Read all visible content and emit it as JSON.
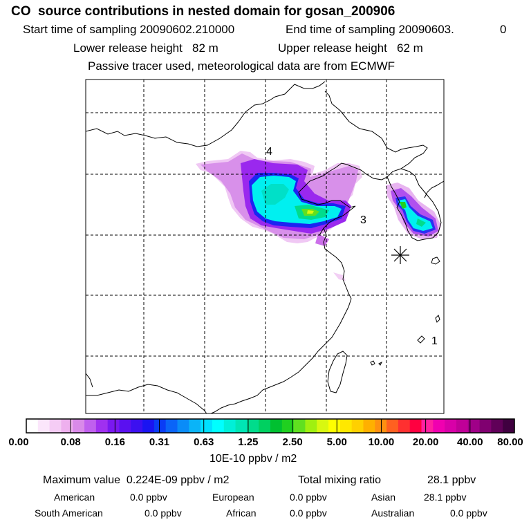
{
  "header": {
    "title": "CO  source contributions in nested domain for gosan_200906",
    "start_label": "Start time of sampling 20090602.210000",
    "end_label": "End time of sampling 20090603.",
    "end_value": "0",
    "lower_label": "Lower release height   82 m",
    "upper_label": "Upper release height   62 m",
    "tracer_line": "Passive tracer used, meteorological data are from ECMWF"
  },
  "map": {
    "region_labels": [
      "4",
      "3",
      "1"
    ],
    "receptor_marker": "asterisk"
  },
  "colorbar": {
    "tick_labels": [
      "0.00",
      "0.08",
      "0.16",
      "0.31",
      "0.63",
      "1.25",
      "2.50",
      "5.00",
      "10.00",
      "20.00",
      "40.00",
      "80.00"
    ],
    "unit": "10E-10 ppbv / m2",
    "colors": [
      "#ffffff",
      "#fbe6fb",
      "#f5ccf5",
      "#eeb0ee",
      "#d98ae9",
      "#c060ee",
      "#a030f0",
      "#7a18f0",
      "#5a10f0",
      "#3c10f0",
      "#1a14f2",
      "#0a3cf5",
      "#0a64f8",
      "#0a8cf8",
      "#0ab4f8",
      "#00e0ff",
      "#00ffff",
      "#00f0d8",
      "#00e6b4",
      "#00dc8c",
      "#00d060",
      "#00c030",
      "#20d020",
      "#60e020",
      "#a0f010",
      "#d8f810",
      "#ffff00",
      "#ffe800",
      "#ffd000",
      "#ffb000",
      "#ff9010",
      "#ff6020",
      "#ff3030",
      "#ff0040",
      "#ff20a0",
      "#f000b0",
      "#d800a8",
      "#c00098",
      "#a00088",
      "#800070",
      "#600058",
      "#400040"
    ]
  },
  "stats": {
    "max_label": "Maximum value  0.224E-09 ppbv / m2",
    "total_label": "Total mixing ratio",
    "total_value": "28.1 ppbv",
    "american_label": "American",
    "american_value": "0.0 ppbv",
    "european_label": "European",
    "european_value": "0.0 ppbv",
    "asian_label": "Asian",
    "asian_value": "28.1 ppbv",
    "south_american_label": "South American",
    "south_american_value": "0.0 ppbv",
    "african_label": "African",
    "african_value": "0.0 ppbv",
    "australian_label": "Australian",
    "australian_value": "0.0 ppbv"
  }
}
